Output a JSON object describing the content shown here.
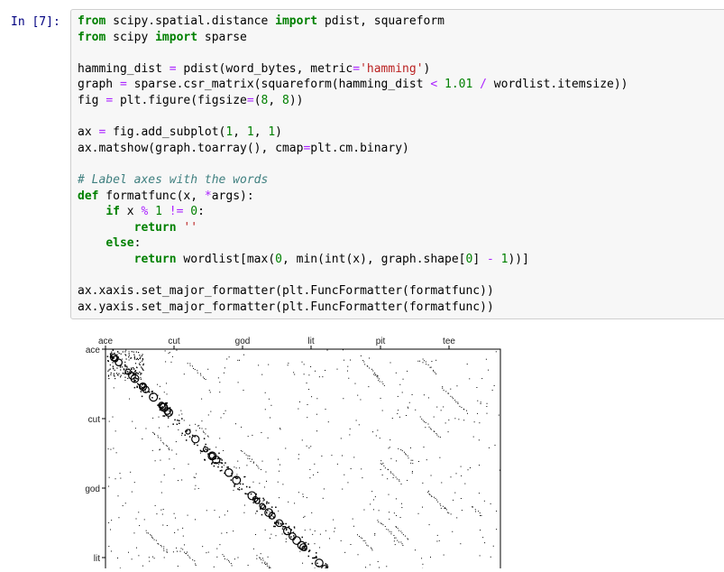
{
  "prompt": "In [7]:",
  "code_lines": [
    [
      {
        "t": "from",
        "c": "kw"
      },
      {
        "t": " scipy.spatial.distance "
      },
      {
        "t": "import",
        "c": "kw"
      },
      {
        "t": " pdist, squareform"
      }
    ],
    [
      {
        "t": "from",
        "c": "kw"
      },
      {
        "t": " scipy "
      },
      {
        "t": "import",
        "c": "kw"
      },
      {
        "t": " sparse"
      }
    ],
    [],
    [
      {
        "t": "hamming_dist "
      },
      {
        "t": "=",
        "c": "op"
      },
      {
        "t": " pdist(word_bytes, metric"
      },
      {
        "t": "=",
        "c": "op"
      },
      {
        "t": "'hamming'",
        "c": "str"
      },
      {
        "t": ")"
      }
    ],
    [
      {
        "t": "graph "
      },
      {
        "t": "=",
        "c": "op"
      },
      {
        "t": " sparse.csr_matrix(squareform(hamming_dist "
      },
      {
        "t": "<",
        "c": "op"
      },
      {
        "t": " "
      },
      {
        "t": "1.01",
        "c": "num"
      },
      {
        "t": " "
      },
      {
        "t": "/",
        "c": "op"
      },
      {
        "t": " wordlist.itemsize))"
      }
    ],
    [
      {
        "t": "fig "
      },
      {
        "t": "=",
        "c": "op"
      },
      {
        "t": " plt.figure(figsize"
      },
      {
        "t": "=",
        "c": "op"
      },
      {
        "t": "("
      },
      {
        "t": "8",
        "c": "num"
      },
      {
        "t": ", "
      },
      {
        "t": "8",
        "c": "num"
      },
      {
        "t": "))"
      }
    ],
    [],
    [
      {
        "t": "ax "
      },
      {
        "t": "=",
        "c": "op"
      },
      {
        "t": " fig.add_subplot("
      },
      {
        "t": "1",
        "c": "num"
      },
      {
        "t": ", "
      },
      {
        "t": "1",
        "c": "num"
      },
      {
        "t": ", "
      },
      {
        "t": "1",
        "c": "num"
      },
      {
        "t": ")"
      }
    ],
    [
      {
        "t": "ax.matshow(graph.toarray(), cmap"
      },
      {
        "t": "=",
        "c": "op"
      },
      {
        "t": "plt.cm.binary)"
      }
    ],
    [],
    [
      {
        "t": "# Label axes with the words",
        "c": "cm"
      }
    ],
    [
      {
        "t": "def",
        "c": "kw"
      },
      {
        "t": " formatfunc(x, "
      },
      {
        "t": "*",
        "c": "op"
      },
      {
        "t": "args):"
      }
    ],
    [
      {
        "t": "    "
      },
      {
        "t": "if",
        "c": "kw"
      },
      {
        "t": " x "
      },
      {
        "t": "%",
        "c": "op"
      },
      {
        "t": " "
      },
      {
        "t": "1",
        "c": "num"
      },
      {
        "t": " "
      },
      {
        "t": "!=",
        "c": "op"
      },
      {
        "t": " "
      },
      {
        "t": "0",
        "c": "num"
      },
      {
        "t": ":"
      }
    ],
    [
      {
        "t": "        "
      },
      {
        "t": "return",
        "c": "kw"
      },
      {
        "t": " "
      },
      {
        "t": "''",
        "c": "str"
      }
    ],
    [
      {
        "t": "    "
      },
      {
        "t": "else",
        "c": "kw"
      },
      {
        "t": ":"
      }
    ],
    [
      {
        "t": "        "
      },
      {
        "t": "return",
        "c": "kw"
      },
      {
        "t": " wordlist[max("
      },
      {
        "t": "0",
        "c": "num"
      },
      {
        "t": ", min(int(x), graph.shape["
      },
      {
        "t": "0",
        "c": "num"
      },
      {
        "t": "] "
      },
      {
        "t": "-",
        "c": "op"
      },
      {
        "t": " "
      },
      {
        "t": "1",
        "c": "num"
      },
      {
        "t": "))]"
      }
    ],
    [],
    [
      {
        "t": "ax.xaxis.set_major_formatter(plt.FuncFormatter(formatfunc))"
      }
    ],
    [
      {
        "t": "ax.yaxis.set_major_formatter(plt.FuncFormatter(formatfunc))"
      }
    ]
  ],
  "plot": {
    "x_ticks": [
      "ace",
      "cut",
      "god",
      "lit",
      "pit",
      "tee"
    ],
    "y_ticks": [
      "ace",
      "cut",
      "god",
      "lit"
    ],
    "colors": {
      "dots": "#000000",
      "frame": "#000000",
      "background": "#ffffff"
    }
  }
}
